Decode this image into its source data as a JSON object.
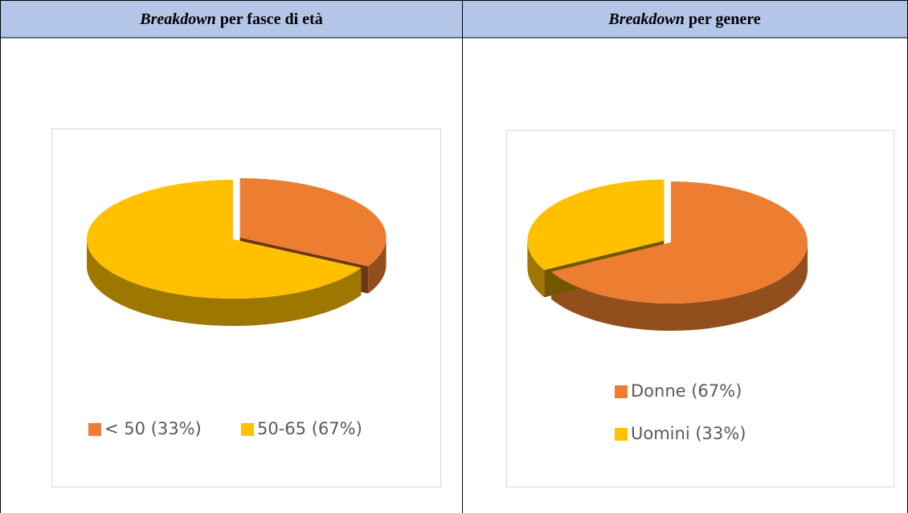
{
  "table": {
    "headers": [
      {
        "em": "Breakdown",
        "text": "per fasce di età"
      },
      {
        "em": "Breakdown",
        "text": "per genere"
      }
    ]
  },
  "chart_data": [
    {
      "type": "pie",
      "categories": [
        "< 50 (33%)",
        "50-65 (67%)"
      ],
      "values": [
        33,
        67
      ],
      "colors": [
        "#ed7d31",
        "#ffc000"
      ],
      "legend": "bottom"
    },
    {
      "type": "pie",
      "categories": [
        "Donne (67%)",
        "Uomini (33%)"
      ],
      "values": [
        67,
        33
      ],
      "colors": [
        "#ed7d31",
        "#ffc000"
      ],
      "legend": "bottom"
    }
  ]
}
